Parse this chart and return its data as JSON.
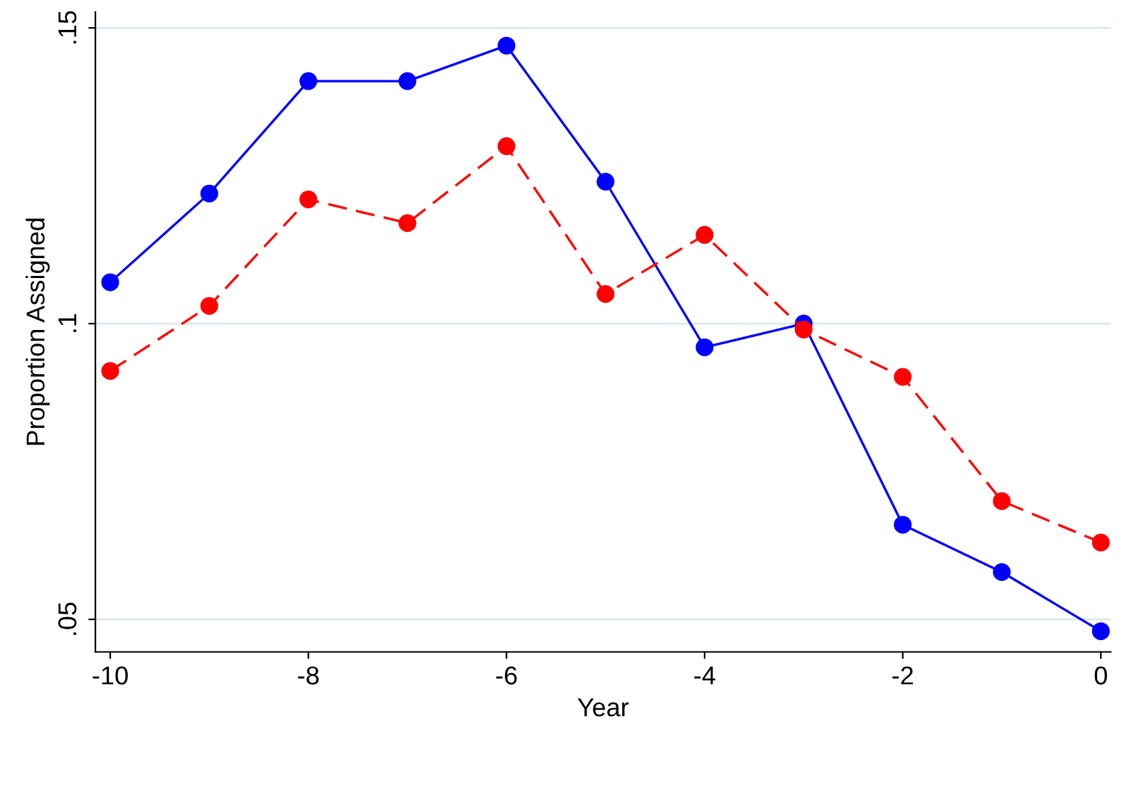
{
  "chart_data": {
    "type": "line",
    "xlabel": "Year",
    "ylabel": "Proportion Assigned",
    "x": [
      -10,
      -9,
      -8,
      -7,
      -6,
      -5,
      -4,
      -3,
      -2,
      -1,
      0
    ],
    "series": [
      {
        "color": "#0000ff",
        "line_style": "solid",
        "values": [
          0.107,
          0.122,
          0.141,
          0.141,
          0.147,
          0.124,
          0.096,
          0.1,
          0.066,
          0.058,
          0.048
        ]
      },
      {
        "color": "#ff0000",
        "line_style": "dashed",
        "values": [
          0.092,
          0.103,
          0.121,
          0.117,
          0.13,
          0.105,
          0.115,
          0.099,
          0.091,
          0.07,
          0.063
        ]
      }
    ],
    "marker": "circle",
    "grid": "y",
    "xlim": [
      -10.15,
      0.1
    ],
    "xticks": [
      -10,
      -8,
      -6,
      -4,
      -2,
      0
    ],
    "ylim": [
      0.0445,
      0.1527
    ],
    "yticks": [
      {
        "value": 0.05,
        "label": ".05"
      },
      {
        "value": 0.1,
        "label": ".1"
      },
      {
        "value": 0.15,
        "label": ".15"
      }
    ]
  }
}
